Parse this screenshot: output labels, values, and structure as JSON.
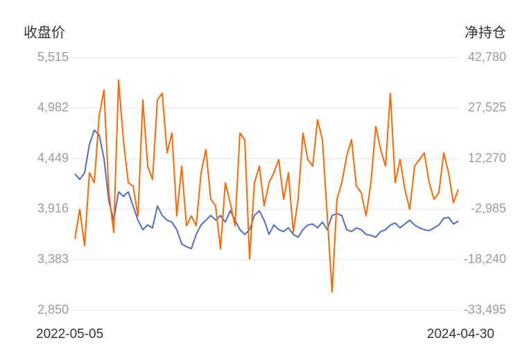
{
  "chart_data": {
    "type": "line",
    "y_label": "收盘价",
    "y2_label": "净持仓",
    "ylim": [
      2850,
      5515
    ],
    "yticks": [
      {
        "value": 2850,
        "label": "2,850"
      },
      {
        "value": 3383,
        "label": "3,383"
      },
      {
        "value": 3916,
        "label": "3,916"
      },
      {
        "value": 4449,
        "label": "4,449"
      },
      {
        "value": 4982,
        "label": "4,982"
      },
      {
        "value": 5515,
        "label": "5,515"
      }
    ],
    "y2lim": [
      -33495,
      42780
    ],
    "y2ticks": [
      {
        "value": -33495,
        "label": "-33,495"
      },
      {
        "value": -18240,
        "label": "-18,240"
      },
      {
        "value": -2985,
        "label": "-2,985"
      },
      {
        "value": 12270,
        "label": "12,270"
      },
      {
        "value": 27525,
        "label": "27,525"
      },
      {
        "value": 42780,
        "label": "42,780"
      }
    ],
    "grid": true,
    "categories": [
      "2022-05-05",
      null,
      null,
      null,
      null,
      null,
      null,
      null,
      null,
      null,
      null,
      null,
      null,
      null,
      null,
      null,
      null,
      null,
      null,
      null,
      null,
      null,
      null,
      null,
      null,
      null,
      null,
      null,
      null,
      null,
      null,
      null,
      null,
      null,
      null,
      null,
      null,
      null,
      null,
      null,
      null,
      null,
      null,
      null,
      null,
      null,
      null,
      null,
      null,
      null,
      null,
      null,
      null,
      null,
      null,
      null,
      null,
      null,
      null,
      null,
      null,
      null,
      null,
      null,
      null,
      null,
      null,
      null,
      null,
      null,
      null,
      null,
      null,
      null,
      null,
      null,
      null,
      null,
      null,
      "2024-04-30"
    ],
    "series": [
      {
        "color": "#4e6bc8",
        "values": [
          4290,
          4230,
          4300,
          4600,
          4750,
          4700,
          4450,
          4000,
          3800,
          4100,
          4050,
          4100,
          3950,
          3800,
          3700,
          3750,
          3720,
          3950,
          3850,
          3800,
          3780,
          3700,
          3550,
          3520,
          3500,
          3650,
          3750,
          3800,
          3850,
          3800,
          3850,
          3780,
          3900,
          3800,
          3700,
          3650,
          3700,
          3850,
          3900,
          3800,
          3650,
          3750,
          3700,
          3680,
          3720,
          3650,
          3620,
          3700,
          3750,
          3760,
          3720,
          3780,
          3700,
          3850,
          3870,
          3850,
          3700,
          3680,
          3720,
          3700,
          3650,
          3640,
          3620,
          3680,
          3700,
          3750,
          3770,
          3720,
          3760,
          3800,
          3750,
          3720,
          3700,
          3690,
          3720,
          3750,
          3820,
          3830,
          3760,
          3790
        ]
      },
      {
        "color": "#ff6600",
        "axis": "y2",
        "values": [
          -12000,
          -3000,
          -14000,
          8000,
          5000,
          25000,
          33000,
          2000,
          -10000,
          36000,
          18000,
          5000,
          4000,
          -5000,
          30000,
          10000,
          6000,
          30000,
          32000,
          14000,
          20000,
          -5000,
          10000,
          -8000,
          -5000,
          -8000,
          8000,
          15000,
          0,
          -2000,
          -15000,
          5000,
          -1000,
          -8000,
          20000,
          18000,
          -18000,
          5000,
          10000,
          -2000,
          5000,
          8000,
          12000,
          0,
          8000,
          -10000,
          0,
          20000,
          12000,
          10000,
          24000,
          18000,
          -5000,
          -28000,
          0,
          5000,
          13000,
          18000,
          4000,
          2000,
          -5000,
          5000,
          22000,
          15000,
          10000,
          32000,
          5000,
          12000,
          3000,
          -3000,
          10000,
          12000,
          14000,
          5000,
          0,
          2000,
          14000,
          8000,
          -1000,
          3000
        ]
      }
    ]
  }
}
